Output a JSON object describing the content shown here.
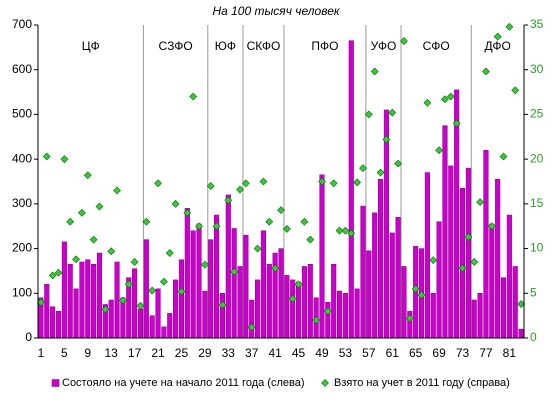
{
  "chart_data": {
    "type": "bar",
    "title": "На 100 тысяч человек",
    "groups": [
      "ЦФ",
      "СЗФО",
      "ЮФ",
      "СКФО",
      "ПФО",
      "УФО",
      "СФО",
      "ДФО"
    ],
    "categories": [
      1,
      null,
      null,
      null,
      5,
      null,
      null,
      null,
      9,
      null,
      null,
      null,
      13,
      null,
      null,
      null,
      17,
      null,
      null,
      null,
      21,
      null,
      null,
      null,
      25,
      null,
      null,
      null,
      29,
      null,
      null,
      null,
      33,
      null,
      null,
      null,
      37,
      null,
      null,
      null,
      41,
      null,
      null,
      null,
      45,
      null,
      null,
      null,
      49,
      null,
      null,
      null,
      53,
      null,
      null,
      null,
      57,
      null,
      null,
      null,
      61,
      null,
      null,
      null,
      65,
      null,
      null,
      null,
      69,
      null,
      null,
      null,
      73,
      null,
      null,
      null,
      77,
      null,
      null,
      null,
      81,
      null,
      null
    ],
    "series": [
      {
        "name": "Состояло на учете на начало 2011 года (слева)",
        "color": "#cc00cc",
        "axis": "y",
        "values": [
          90,
          120,
          70,
          60,
          215,
          165,
          110,
          170,
          175,
          165,
          190,
          75,
          85,
          170,
          90,
          135,
          155,
          65,
          220,
          50,
          110,
          25,
          55,
          130,
          175,
          290,
          240,
          255,
          105,
          220,
          275,
          100,
          320,
          245,
          160,
          230,
          85,
          130,
          240,
          165,
          190,
          200,
          140,
          130,
          125,
          160,
          165,
          90,
          365,
          80,
          165,
          105,
          100,
          665,
          110,
          295,
          195,
          280,
          355,
          510,
          235,
          270,
          160,
          60,
          205,
          200,
          370,
          100,
          260,
          475,
          385,
          555,
          335,
          380,
          85,
          100,
          420,
          255,
          355,
          135,
          275,
          160,
          20
        ]
      },
      {
        "name": "Взято на учет в 2011 году (справа)",
        "color": "#33cc33",
        "axis": "y2",
        "values": [
          4,
          20.3,
          7,
          7.3,
          20,
          13,
          8.8,
          14,
          18.2,
          11,
          14.7,
          3.2,
          9.7,
          16.5,
          4.2,
          6,
          8.5,
          3.6,
          13,
          5.3,
          17.3,
          6.3,
          9.5,
          15,
          5.2,
          14,
          27,
          12.5,
          8.2,
          17,
          12.5,
          3.7,
          15.4,
          7.4,
          16.6,
          17.3,
          1.2,
          10,
          17.5,
          13,
          7.8,
          14.3,
          12.2,
          4.4,
          6,
          13,
          11,
          2,
          17.5,
          3,
          17.3,
          12,
          12,
          11.7,
          17.4,
          19,
          25,
          29.8,
          18.5,
          22.2,
          25.2,
          19.5,
          33.2,
          2.2,
          5.5,
          4.8,
          26.3,
          8.7,
          21,
          26.7,
          27,
          24,
          7.8,
          11.3,
          8.5,
          15.2,
          29.8,
          12.5,
          33.7,
          20.3,
          34.8,
          27.7,
          3.8
        ]
      }
    ],
    "ylim": [
      0,
      700
    ],
    "yticks": [
      0,
      100,
      200,
      300,
      400,
      500,
      600,
      700
    ],
    "y2lim": [
      0,
      35
    ],
    "y2ticks": [
      0,
      5,
      10,
      15,
      20,
      25,
      30,
      35
    ],
    "legend": "bottom"
  }
}
